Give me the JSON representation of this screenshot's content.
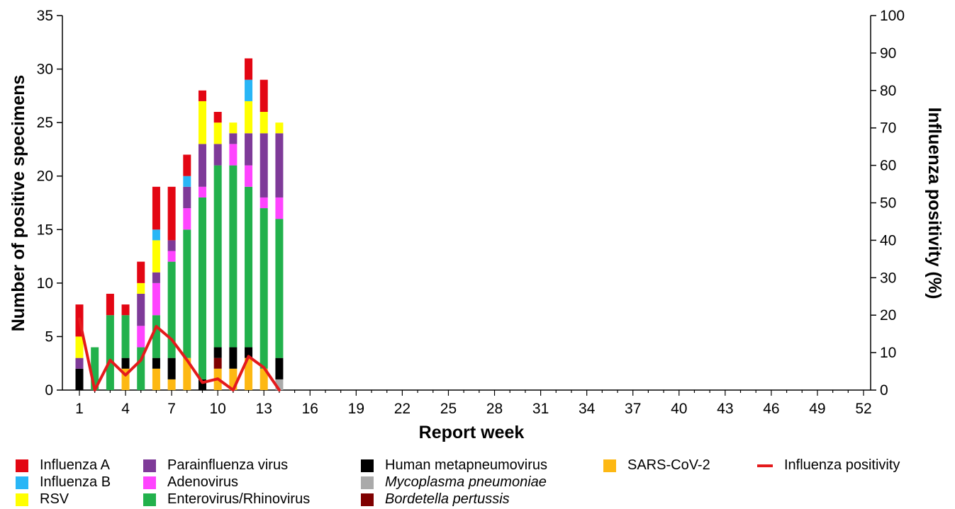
{
  "chart_data": {
    "type": "bar",
    "subtype": "stacked-bar-with-line",
    "xlabel": "Report week",
    "ylabel": "Number of positive specimens",
    "y2label": "Influenza positivity (%)",
    "ylim": [
      0,
      35
    ],
    "y2lim": [
      0,
      100
    ],
    "yticks": [
      0,
      5,
      10,
      15,
      20,
      25,
      30,
      35
    ],
    "y2ticks": [
      0,
      10,
      20,
      30,
      40,
      50,
      60,
      70,
      80,
      90,
      100
    ],
    "xlim": [
      1,
      52
    ],
    "xtick_labels": [
      "1",
      "4",
      "7",
      "10",
      "13",
      "16",
      "19",
      "22",
      "25",
      "28",
      "31",
      "34",
      "37",
      "40",
      "43",
      "46",
      "49",
      "52"
    ],
    "grid": false,
    "legend_position": "bottom",
    "weeks": [
      1,
      2,
      3,
      4,
      5,
      6,
      7,
      8,
      9,
      10,
      11,
      12,
      13,
      14
    ],
    "series": [
      {
        "name": "SARS-CoV-2",
        "color": "#FDB813",
        "italic": false,
        "values": [
          0,
          0,
          0,
          2,
          0,
          2,
          1,
          3,
          0,
          2,
          2,
          3,
          2,
          0
        ]
      },
      {
        "name": "Bordetella pertussis",
        "color": "#7F0000",
        "italic": true,
        "values": [
          0,
          0,
          0,
          0,
          0,
          0,
          0,
          0,
          0,
          1,
          0,
          0,
          0,
          0
        ]
      },
      {
        "name": "Mycoplasma pneumoniae",
        "color": "#AAAAAA",
        "italic": true,
        "values": [
          0,
          0,
          0,
          0,
          0,
          0,
          0,
          0,
          0,
          0,
          0,
          0,
          0,
          1
        ]
      },
      {
        "name": "Human metapneumovirus",
        "color": "#000000",
        "italic": false,
        "values": [
          2,
          0,
          0,
          1,
          0,
          1,
          2,
          0,
          1,
          1,
          2,
          1,
          0,
          2
        ]
      },
      {
        "name": "Enterovirus/Rhinovirus",
        "color": "#22B14C",
        "italic": false,
        "values": [
          0,
          4,
          7,
          4,
          4,
          4,
          9,
          12,
          17,
          17,
          17,
          15,
          15,
          13
        ]
      },
      {
        "name": "Adenovirus",
        "color": "#FF44FF",
        "italic": false,
        "values": [
          0,
          0,
          0,
          0,
          2,
          3,
          1,
          2,
          1,
          0,
          2,
          2,
          1,
          2
        ]
      },
      {
        "name": "Parainfluenza virus",
        "color": "#7E3A98",
        "italic": false,
        "values": [
          1,
          0,
          0,
          0,
          3,
          1,
          1,
          2,
          4,
          2,
          1,
          3,
          6,
          6
        ]
      },
      {
        "name": "RSV",
        "color": "#FFFF00",
        "italic": false,
        "values": [
          2,
          0,
          0,
          0,
          1,
          3,
          0,
          0,
          4,
          2,
          1,
          3,
          2,
          1
        ]
      },
      {
        "name": "Influenza B",
        "color": "#29B6F6",
        "italic": false,
        "values": [
          0,
          0,
          0,
          0,
          0,
          1,
          0,
          1,
          0,
          0,
          0,
          2,
          0,
          0
        ]
      },
      {
        "name": "Influenza A",
        "color": "#E30613",
        "italic": false,
        "values": [
          3,
          0,
          2,
          1,
          2,
          4,
          5,
          2,
          1,
          1,
          0,
          2,
          3,
          0
        ]
      }
    ],
    "line": {
      "name": "Influenza positivity",
      "color": "#E41A1C",
      "values": [
        19,
        0,
        8,
        4,
        8,
        17,
        13.5,
        8,
        2,
        3,
        0,
        9,
        6,
        0
      ]
    }
  },
  "legend": {
    "influenza_a": "Influenza A",
    "influenza_b": "Influenza B",
    "rsv": "RSV",
    "parainfluenza": "Parainfluenza virus",
    "adenovirus": "Adenovirus",
    "enterovirus": "Enterovirus/Rhinovirus",
    "hmpv": "Human metapneumovirus",
    "mycoplasma": "Mycoplasma pneumoniae",
    "bordetella": "Bordetella pertussis",
    "sars": "SARS-CoV-2",
    "positivity": "Influenza positivity"
  },
  "colors": {
    "influenza_a": "#E30613",
    "influenza_b": "#29B6F6",
    "rsv": "#FFFF00",
    "parainfluenza": "#7E3A98",
    "adenovirus": "#FF44FF",
    "enterovirus": "#22B14C",
    "hmpv": "#000000",
    "mycoplasma": "#AAAAAA",
    "bordetella": "#7F0000",
    "sars": "#FDB813",
    "positivity": "#E41A1C"
  }
}
